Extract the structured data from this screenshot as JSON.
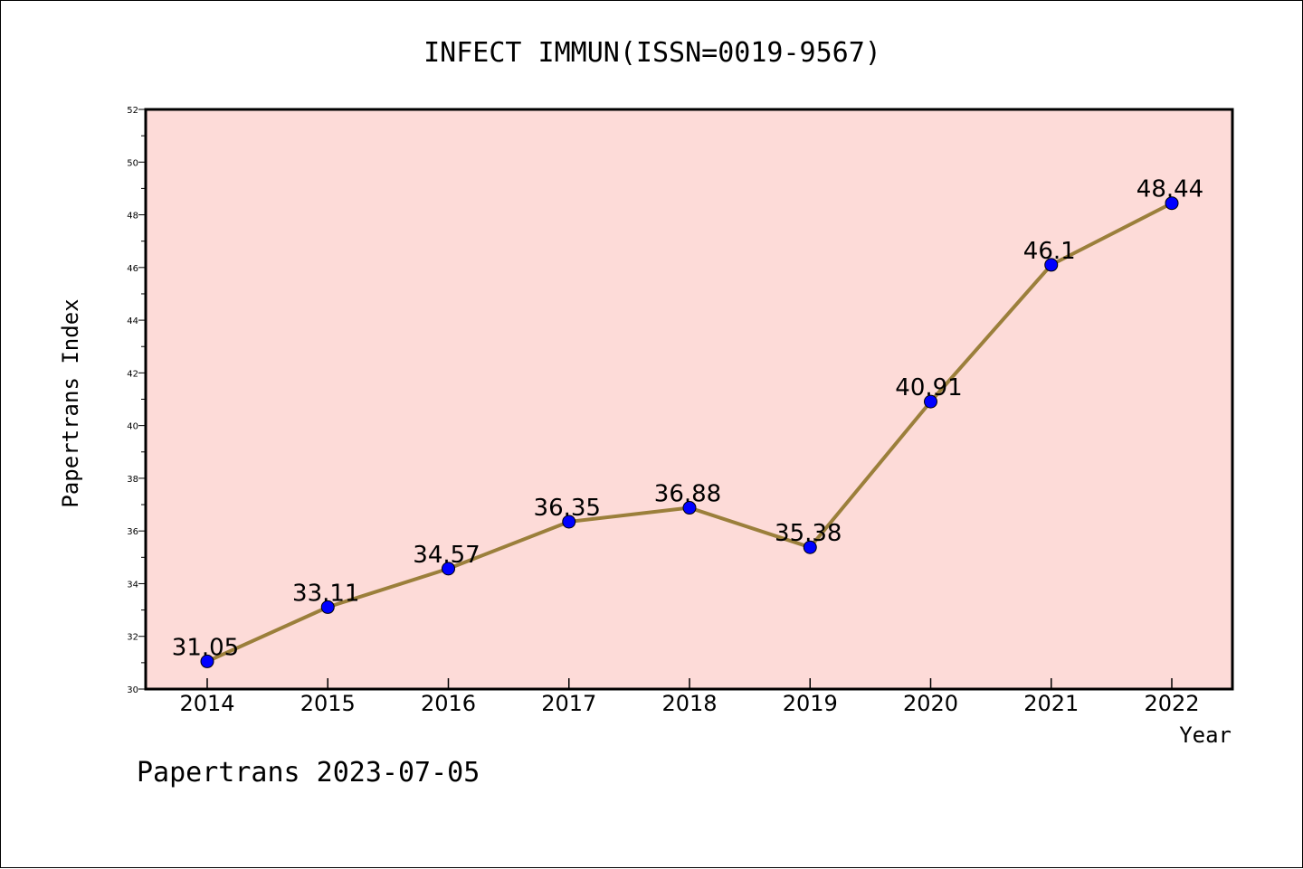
{
  "footer": "Papertrans 2023-07-05",
  "colors": {
    "plot_background": "#fddbd8",
    "line": "#9b7f3b",
    "marker": "#0000ff"
  },
  "chart_data": {
    "type": "line",
    "title": "INFECT IMMUN(ISSN=0019-9567)",
    "xlabel": "Year",
    "ylabel": "Papertrans Index",
    "categories": [
      "2014",
      "2015",
      "2016",
      "2017",
      "2018",
      "2019",
      "2020",
      "2021",
      "2022"
    ],
    "series": [
      {
        "values": [
          31.05,
          33.11,
          34.57,
          36.35,
          36.88,
          35.38,
          40.91,
          46.1,
          48.44
        ],
        "labels": [
          "31.05",
          "33.11",
          "34.57",
          "36.35",
          "36.88",
          "35.38",
          "40.91",
          "46.1",
          "48.44"
        ]
      }
    ],
    "ylim": [
      30,
      52
    ],
    "yticks": [
      "30",
      "32",
      "34",
      "36",
      "38",
      "40",
      "42",
      "44",
      "46",
      "48",
      "50",
      "52"
    ],
    "grid": false,
    "legend": "none"
  }
}
